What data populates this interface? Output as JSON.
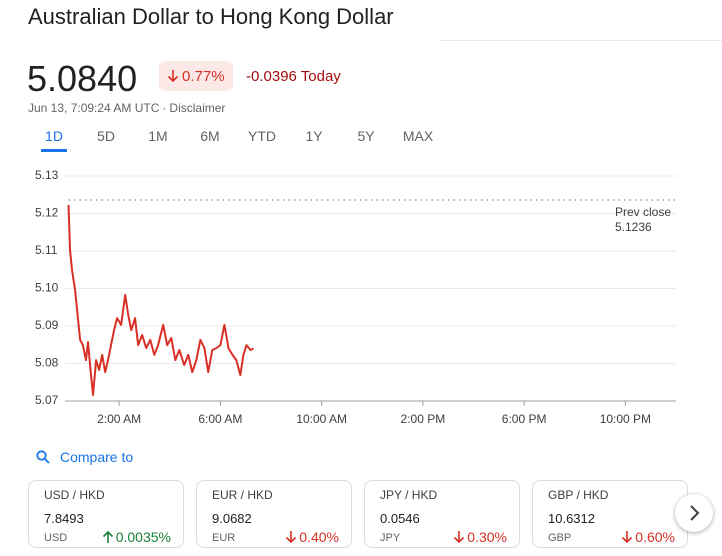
{
  "header": {
    "title": "Australian Dollar to Hong Kong Dollar"
  },
  "quote": {
    "price": "5.0840",
    "change_percent": "0.77%",
    "direction": "down",
    "change_today": "-0.0396 Today",
    "timestamp": "Jun 13, 7:09:24 AM UTC",
    "separator": "·",
    "disclaimer": "Disclaimer"
  },
  "ranges": {
    "items": [
      "1D",
      "5D",
      "1M",
      "6M",
      "YTD",
      "1Y",
      "5Y",
      "MAX"
    ],
    "active": 0
  },
  "chart_data": {
    "type": "line",
    "x": [
      0,
      0.06,
      0.14,
      0.26,
      0.38,
      0.46,
      0.57,
      0.69,
      0.77,
      0.89,
      0.97,
      1.09,
      1.21,
      1.33,
      1.45,
      1.56,
      1.68,
      1.8,
      1.92,
      2.08,
      2.24,
      2.36,
      2.48,
      2.63,
      2.75,
      2.91,
      3.07,
      3.23,
      3.39,
      3.54,
      3.74,
      3.9,
      4.06,
      4.22,
      4.38,
      4.57,
      4.73,
      4.89,
      5.05,
      5.21,
      5.37,
      5.52,
      5.68,
      5.84,
      6,
      6.16,
      6.32,
      6.48,
      6.63,
      6.79,
      6.91,
      7.03,
      7.19,
      7.31
    ],
    "series": [
      {
        "color": "#d93025",
        "values": [
          5.1223,
          5.1103,
          5.1049,
          5.0996,
          5.0916,
          5.0863,
          5.0849,
          5.0809,
          5.0857,
          5.0769,
          5.0716,
          5.0809,
          5.0783,
          5.0823,
          5.0777,
          5.0809,
          5.0849,
          5.0889,
          5.0921,
          5.0903,
          5.0983,
          5.0929,
          5.0889,
          5.0921,
          5.0849,
          5.0876,
          5.0841,
          5.0863,
          5.0823,
          5.0849,
          5.0903,
          5.0849,
          5.0868,
          5.0809,
          5.0836,
          5.0796,
          5.0823,
          5.0777,
          5.0809,
          5.0863,
          5.0841,
          5.0777,
          5.0836,
          5.0841,
          5.0849,
          5.0903,
          5.0841,
          5.0823,
          5.0809,
          5.0769,
          5.0823,
          5.0849,
          5.0836,
          5.084
        ]
      }
    ],
    "xlim": [
      0,
      24
    ],
    "xticks": [
      {
        "value": 2,
        "label": "2:00 AM"
      },
      {
        "value": 6,
        "label": "6:00 AM"
      },
      {
        "value": 10,
        "label": "10:00 AM"
      },
      {
        "value": 14,
        "label": "2:00 PM"
      },
      {
        "value": 18,
        "label": "6:00 PM"
      },
      {
        "value": 22,
        "label": "10:00 PM"
      }
    ],
    "ylim": [
      5.07,
      5.13
    ],
    "yticks": [
      5.07,
      5.08,
      5.09,
      {
        "value": 5.1,
        "label": "5.10"
      },
      5.11,
      5.12,
      5.13
    ],
    "grid": true,
    "prev_close": {
      "label": "Prev close",
      "value": 5.1236
    }
  },
  "compare": {
    "label": "Compare to",
    "cards": [
      {
        "pair": "USD / HKD",
        "price": "7.8493",
        "code": "USD",
        "change": "0.0035%",
        "direction": "up"
      },
      {
        "pair": "EUR / HKD",
        "price": "9.0682",
        "code": "EUR",
        "change": "0.40%",
        "direction": "down"
      },
      {
        "pair": "JPY / HKD",
        "price": "0.0546",
        "code": "JPY",
        "change": "0.30%",
        "direction": "down"
      },
      {
        "pair": "GBP / HKD",
        "price": "10.6312",
        "code": "GBP",
        "change": "0.60%",
        "direction": "down"
      }
    ]
  }
}
